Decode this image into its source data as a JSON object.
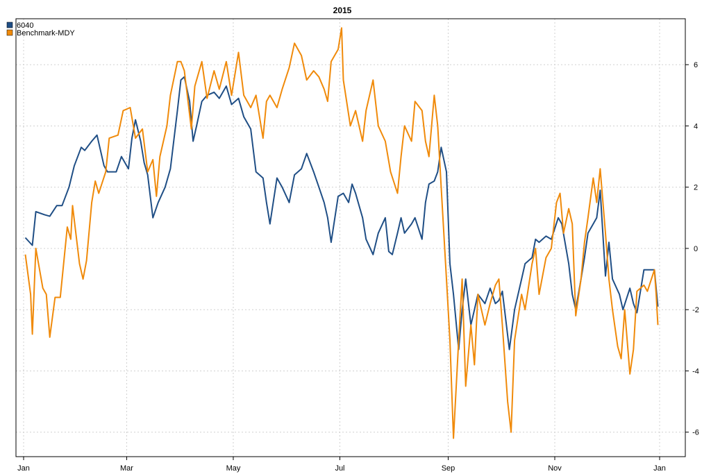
{
  "chart_data": {
    "type": "line",
    "title": "2015",
    "xlabel": "",
    "ylabel": "",
    "x_range": [
      "2015-01-01",
      "2015-12-31"
    ],
    "x_ticks": [
      {
        "date": "2015-01-01",
        "label": "Jan"
      },
      {
        "date": "2015-03-01",
        "label": "Mar"
      },
      {
        "date": "2015-05-01",
        "label": "May"
      },
      {
        "date": "2015-07-01",
        "label": "Jul"
      },
      {
        "date": "2015-09-01",
        "label": "Sep"
      },
      {
        "date": "2015-11-01",
        "label": "Nov"
      },
      {
        "date": "2015-12-31",
        "label": "Jan"
      }
    ],
    "ylim": [
      -6.8,
      7.5
    ],
    "y_ticks": [
      -6,
      -4,
      -2,
      0,
      2,
      4,
      6
    ],
    "y_axis_side": "right",
    "grid": true,
    "legend_position": "top-left",
    "series": [
      {
        "name": "6040",
        "color": "#1f4e85",
        "points": [
          [
            "2015-01-02",
            0.35
          ],
          [
            "2015-01-06",
            0.1
          ],
          [
            "2015-01-08",
            1.2
          ],
          [
            "2015-01-13",
            1.1
          ],
          [
            "2015-01-16",
            1.05
          ],
          [
            "2015-01-20",
            1.4
          ],
          [
            "2015-01-23",
            1.4
          ],
          [
            "2015-01-27",
            2.0
          ],
          [
            "2015-01-30",
            2.7
          ],
          [
            "2015-02-03",
            3.3
          ],
          [
            "2015-02-05",
            3.2
          ],
          [
            "2015-02-09",
            3.5
          ],
          [
            "2015-02-12",
            3.7
          ],
          [
            "2015-02-16",
            2.7
          ],
          [
            "2015-02-18",
            2.5
          ],
          [
            "2015-02-23",
            2.5
          ],
          [
            "2015-02-26",
            3.0
          ],
          [
            "2015-03-02",
            2.6
          ],
          [
            "2015-03-04",
            3.6
          ],
          [
            "2015-03-06",
            4.2
          ],
          [
            "2015-03-09",
            3.5
          ],
          [
            "2015-03-11",
            2.8
          ],
          [
            "2015-03-13",
            2.4
          ],
          [
            "2015-03-16",
            1.0
          ],
          [
            "2015-03-19",
            1.5
          ],
          [
            "2015-03-23",
            2.0
          ],
          [
            "2015-03-26",
            2.6
          ],
          [
            "2015-03-30",
            4.5
          ],
          [
            "2015-04-01",
            5.5
          ],
          [
            "2015-04-03",
            5.6
          ],
          [
            "2015-04-06",
            4.8
          ],
          [
            "2015-04-08",
            3.5
          ],
          [
            "2015-04-10",
            4.0
          ],
          [
            "2015-04-13",
            4.8
          ],
          [
            "2015-04-16",
            5.0
          ],
          [
            "2015-04-20",
            5.1
          ],
          [
            "2015-04-23",
            4.9
          ],
          [
            "2015-04-27",
            5.3
          ],
          [
            "2015-04-30",
            4.7
          ],
          [
            "2015-05-04",
            4.9
          ],
          [
            "2015-05-07",
            4.3
          ],
          [
            "2015-05-11",
            3.9
          ],
          [
            "2015-05-14",
            2.5
          ],
          [
            "2015-05-18",
            2.3
          ],
          [
            "2015-05-20",
            1.5
          ],
          [
            "2015-05-22",
            0.8
          ],
          [
            "2015-05-26",
            2.3
          ],
          [
            "2015-05-29",
            2.0
          ],
          [
            "2015-06-02",
            1.5
          ],
          [
            "2015-06-05",
            2.4
          ],
          [
            "2015-06-09",
            2.6
          ],
          [
            "2015-06-12",
            3.1
          ],
          [
            "2015-06-16",
            2.5
          ],
          [
            "2015-06-19",
            2.0
          ],
          [
            "2015-06-22",
            1.5
          ],
          [
            "2015-06-24",
            1.0
          ],
          [
            "2015-06-26",
            0.2
          ],
          [
            "2015-06-30",
            1.7
          ],
          [
            "2015-07-03",
            1.8
          ],
          [
            "2015-07-06",
            1.5
          ],
          [
            "2015-07-08",
            2.1
          ],
          [
            "2015-07-10",
            1.8
          ],
          [
            "2015-07-14",
            1.0
          ],
          [
            "2015-07-16",
            0.3
          ],
          [
            "2015-07-20",
            -0.2
          ],
          [
            "2015-07-23",
            0.5
          ],
          [
            "2015-07-27",
            1.0
          ],
          [
            "2015-07-29",
            -0.1
          ],
          [
            "2015-07-31",
            -0.2
          ],
          [
            "2015-08-03",
            0.5
          ],
          [
            "2015-08-05",
            1.0
          ],
          [
            "2015-08-07",
            0.5
          ],
          [
            "2015-08-11",
            0.8
          ],
          [
            "2015-08-13",
            1.0
          ],
          [
            "2015-08-17",
            0.3
          ],
          [
            "2015-08-19",
            1.5
          ],
          [
            "2015-08-21",
            2.1
          ],
          [
            "2015-08-24",
            2.2
          ],
          [
            "2015-08-26",
            2.5
          ],
          [
            "2015-08-28",
            3.3
          ],
          [
            "2015-08-31",
            2.5
          ],
          [
            "2015-09-02",
            -0.5
          ],
          [
            "2015-09-04",
            -1.5
          ],
          [
            "2015-09-07",
            -3.3
          ],
          [
            "2015-09-09",
            -2.0
          ],
          [
            "2015-09-11",
            -1.0
          ],
          [
            "2015-09-14",
            -2.5
          ],
          [
            "2015-09-16",
            -2.0
          ],
          [
            "2015-09-18",
            -1.5
          ],
          [
            "2015-09-22",
            -1.8
          ],
          [
            "2015-09-25",
            -1.3
          ],
          [
            "2015-09-28",
            -1.8
          ],
          [
            "2015-09-30",
            -1.7
          ],
          [
            "2015-10-02",
            -1.4
          ],
          [
            "2015-10-06",
            -3.3
          ],
          [
            "2015-10-09",
            -2.0
          ],
          [
            "2015-10-13",
            -1.0
          ],
          [
            "2015-10-15",
            -0.5
          ],
          [
            "2015-10-19",
            -0.3
          ],
          [
            "2015-10-21",
            0.3
          ],
          [
            "2015-10-23",
            0.2
          ],
          [
            "2015-10-27",
            0.4
          ],
          [
            "2015-10-30",
            0.3
          ],
          [
            "2015-11-03",
            1.0
          ],
          [
            "2015-11-05",
            0.8
          ],
          [
            "2015-11-09",
            -0.5
          ],
          [
            "2015-11-11",
            -1.5
          ],
          [
            "2015-11-13",
            -2.0
          ],
          [
            "2015-11-16",
            -1.0
          ],
          [
            "2015-11-18",
            -0.3
          ],
          [
            "2015-11-20",
            0.5
          ],
          [
            "2015-11-23",
            0.8
          ],
          [
            "2015-11-25",
            1.0
          ],
          [
            "2015-11-27",
            1.9
          ],
          [
            "2015-11-30",
            -0.9
          ],
          [
            "2015-12-02",
            0.2
          ],
          [
            "2015-12-04",
            -1.0
          ],
          [
            "2015-12-08",
            -1.5
          ],
          [
            "2015-12-10",
            -2.0
          ],
          [
            "2015-12-14",
            -1.3
          ],
          [
            "2015-12-16",
            -1.8
          ],
          [
            "2015-12-18",
            -2.1
          ],
          [
            "2015-12-22",
            -0.7
          ],
          [
            "2015-12-24",
            -0.7
          ],
          [
            "2015-12-28",
            -0.7
          ],
          [
            "2015-12-30",
            -1.9
          ]
        ]
      },
      {
        "name": "Benchmark-MDY",
        "color": "#f08a0a",
        "points": [
          [
            "2015-01-02",
            -0.2
          ],
          [
            "2015-01-05",
            -1.5
          ],
          [
            "2015-01-06",
            -2.8
          ],
          [
            "2015-01-08",
            0.0
          ],
          [
            "2015-01-12",
            -1.3
          ],
          [
            "2015-01-14",
            -1.5
          ],
          [
            "2015-01-16",
            -2.9
          ],
          [
            "2015-01-19",
            -1.6
          ],
          [
            "2015-01-22",
            -1.6
          ],
          [
            "2015-01-26",
            0.7
          ],
          [
            "2015-01-28",
            0.3
          ],
          [
            "2015-01-29",
            1.4
          ],
          [
            "2015-02-02",
            -0.5
          ],
          [
            "2015-02-04",
            -1.0
          ],
          [
            "2015-02-06",
            -0.4
          ],
          [
            "2015-02-09",
            1.5
          ],
          [
            "2015-02-11",
            2.2
          ],
          [
            "2015-02-13",
            1.8
          ],
          [
            "2015-02-17",
            2.5
          ],
          [
            "2015-02-19",
            3.6
          ],
          [
            "2015-02-24",
            3.7
          ],
          [
            "2015-02-27",
            4.5
          ],
          [
            "2015-03-03",
            4.6
          ],
          [
            "2015-03-06",
            3.6
          ],
          [
            "2015-03-10",
            3.9
          ],
          [
            "2015-03-13",
            2.5
          ],
          [
            "2015-03-16",
            2.9
          ],
          [
            "2015-03-18",
            1.7
          ],
          [
            "2015-03-20",
            3.0
          ],
          [
            "2015-03-24",
            4.0
          ],
          [
            "2015-03-26",
            5.0
          ],
          [
            "2015-03-30",
            6.1
          ],
          [
            "2015-04-01",
            6.1
          ],
          [
            "2015-04-03",
            5.8
          ],
          [
            "2015-04-07",
            3.9
          ],
          [
            "2015-04-09",
            5.3
          ],
          [
            "2015-04-13",
            6.1
          ],
          [
            "2015-04-16",
            4.9
          ],
          [
            "2015-04-20",
            5.8
          ],
          [
            "2015-04-23",
            5.2
          ],
          [
            "2015-04-27",
            6.1
          ],
          [
            "2015-04-30",
            5.0
          ],
          [
            "2015-05-04",
            6.4
          ],
          [
            "2015-05-07",
            5.0
          ],
          [
            "2015-05-11",
            4.6
          ],
          [
            "2015-05-14",
            5.0
          ],
          [
            "2015-05-18",
            3.6
          ],
          [
            "2015-05-20",
            4.8
          ],
          [
            "2015-05-22",
            5.0
          ],
          [
            "2015-05-26",
            4.6
          ],
          [
            "2015-05-29",
            5.2
          ],
          [
            "2015-06-02",
            5.9
          ],
          [
            "2015-06-05",
            6.7
          ],
          [
            "2015-06-09",
            6.3
          ],
          [
            "2015-06-12",
            5.5
          ],
          [
            "2015-06-16",
            5.8
          ],
          [
            "2015-06-19",
            5.6
          ],
          [
            "2015-06-22",
            5.2
          ],
          [
            "2015-06-24",
            4.8
          ],
          [
            "2015-06-26",
            6.1
          ],
          [
            "2015-06-30",
            6.5
          ],
          [
            "2015-07-02",
            7.2
          ],
          [
            "2015-07-03",
            5.5
          ],
          [
            "2015-07-07",
            4.0
          ],
          [
            "2015-07-10",
            4.5
          ],
          [
            "2015-07-14",
            3.5
          ],
          [
            "2015-07-16",
            4.5
          ],
          [
            "2015-07-20",
            5.5
          ],
          [
            "2015-07-23",
            4.0
          ],
          [
            "2015-07-27",
            3.5
          ],
          [
            "2015-07-30",
            2.5
          ],
          [
            "2015-08-03",
            1.8
          ],
          [
            "2015-08-05",
            3.0
          ],
          [
            "2015-08-07",
            4.0
          ],
          [
            "2015-08-11",
            3.5
          ],
          [
            "2015-08-13",
            4.8
          ],
          [
            "2015-08-17",
            4.5
          ],
          [
            "2015-08-19",
            3.5
          ],
          [
            "2015-08-21",
            3.0
          ],
          [
            "2015-08-24",
            5.0
          ],
          [
            "2015-08-26",
            4.0
          ],
          [
            "2015-08-28",
            2.0
          ],
          [
            "2015-08-31",
            -1.0
          ],
          [
            "2015-09-02",
            -3.0
          ],
          [
            "2015-09-04",
            -6.2
          ],
          [
            "2015-09-07",
            -3.0
          ],
          [
            "2015-09-09",
            -1.0
          ],
          [
            "2015-09-11",
            -4.5
          ],
          [
            "2015-09-14",
            -2.5
          ],
          [
            "2015-09-16",
            -3.8
          ],
          [
            "2015-09-18",
            -1.5
          ],
          [
            "2015-09-22",
            -2.5
          ],
          [
            "2015-09-25",
            -1.8
          ],
          [
            "2015-09-28",
            -1.2
          ],
          [
            "2015-09-30",
            -1.0
          ],
          [
            "2015-10-02",
            -2.5
          ],
          [
            "2015-10-05",
            -5.0
          ],
          [
            "2015-10-07",
            -6.0
          ],
          [
            "2015-10-09",
            -3.0
          ],
          [
            "2015-10-13",
            -1.5
          ],
          [
            "2015-10-15",
            -2.0
          ],
          [
            "2015-10-19",
            -0.5
          ],
          [
            "2015-10-21",
            0.0
          ],
          [
            "2015-10-23",
            -1.5
          ],
          [
            "2015-10-27",
            -0.3
          ],
          [
            "2015-10-30",
            0.0
          ],
          [
            "2015-11-02",
            1.5
          ],
          [
            "2015-11-04",
            1.8
          ],
          [
            "2015-11-06",
            0.5
          ],
          [
            "2015-11-09",
            1.3
          ],
          [
            "2015-11-11",
            0.8
          ],
          [
            "2015-11-13",
            -2.2
          ],
          [
            "2015-11-16",
            -1.0
          ],
          [
            "2015-11-18",
            0.2
          ],
          [
            "2015-11-20",
            1.0
          ],
          [
            "2015-11-23",
            2.3
          ],
          [
            "2015-11-25",
            1.5
          ],
          [
            "2015-11-27",
            2.6
          ],
          [
            "2015-11-30",
            0.5
          ],
          [
            "2015-12-02",
            -1.0
          ],
          [
            "2015-12-04",
            -2.0
          ],
          [
            "2015-12-07",
            -3.2
          ],
          [
            "2015-12-09",
            -3.6
          ],
          [
            "2015-12-11",
            -2.0
          ],
          [
            "2015-12-14",
            -4.1
          ],
          [
            "2015-12-16",
            -3.3
          ],
          [
            "2015-12-18",
            -1.4
          ],
          [
            "2015-12-22",
            -1.2
          ],
          [
            "2015-12-24",
            -1.4
          ],
          [
            "2015-12-28",
            -0.7
          ],
          [
            "2015-12-29",
            -1.5
          ],
          [
            "2015-12-30",
            -2.5
          ]
        ]
      }
    ]
  }
}
